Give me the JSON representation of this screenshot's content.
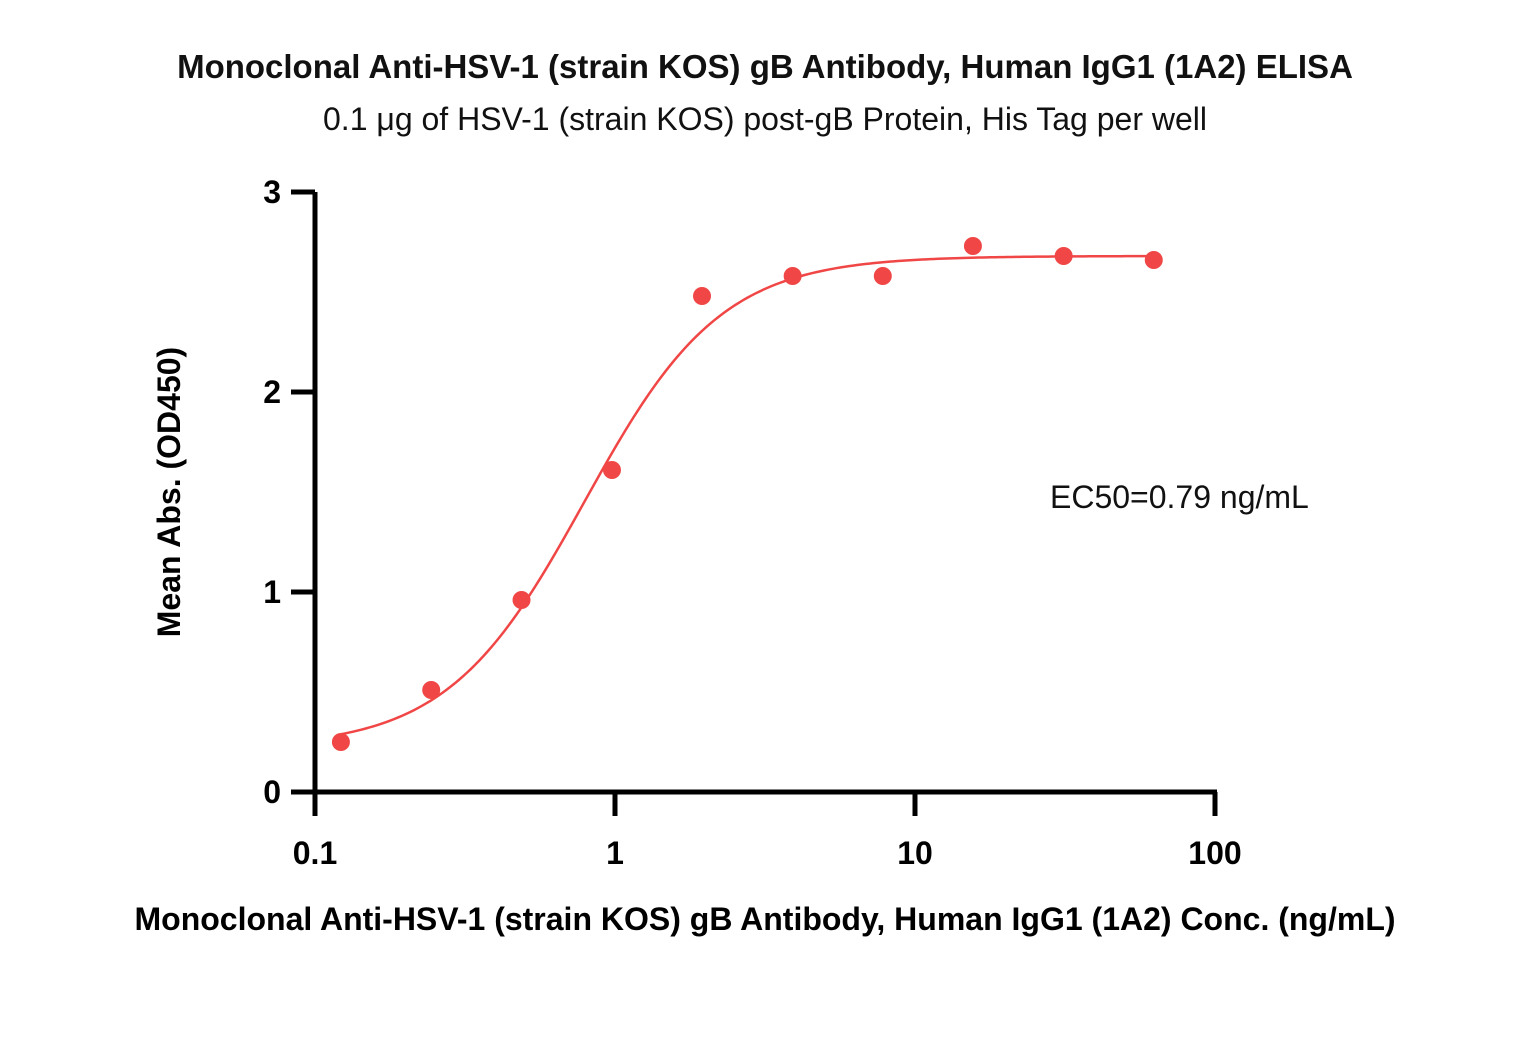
{
  "chart_data": {
    "type": "scatter",
    "title": "Monoclonal Anti-HSV-1 (strain KOS) gB Antibody, Human IgG1 (1A2) ELISA",
    "subtitle": "0.1 μg of HSV-1 (strain KOS) post-gB Protein, His Tag per well",
    "xlabel": "Monoclonal Anti-HSV-1 (strain KOS) gB Antibody, Human IgG1 (1A2) Conc. (ng/mL)",
    "ylabel": "Mean Abs. (OD450)",
    "xscale": "log",
    "xlim": [
      0.1,
      100
    ],
    "ylim": [
      0,
      3
    ],
    "xticks": [
      0.1,
      1,
      10,
      100
    ],
    "xtick_labels": [
      "0.1",
      "1",
      "10",
      "100"
    ],
    "yticks": [
      0,
      1,
      2,
      3
    ],
    "ytick_labels": [
      "0",
      "1",
      "2",
      "3"
    ],
    "grid": false,
    "color": "#f04646",
    "annotation": "EC50=0.79 ng/mL",
    "series": [
      {
        "x": [
          0.122,
          0.244,
          0.488,
          0.977,
          1.95,
          3.91,
          7.81,
          15.6,
          31.3,
          62.5
        ],
        "y": [
          0.25,
          0.51,
          0.96,
          1.61,
          2.48,
          2.58,
          2.58,
          2.73,
          2.68,
          2.66
        ]
      }
    ],
    "fit": {
      "model": "4PL",
      "bottom": 0.22,
      "top": 2.68,
      "ec50": 0.79,
      "hill": 1.9
    }
  }
}
